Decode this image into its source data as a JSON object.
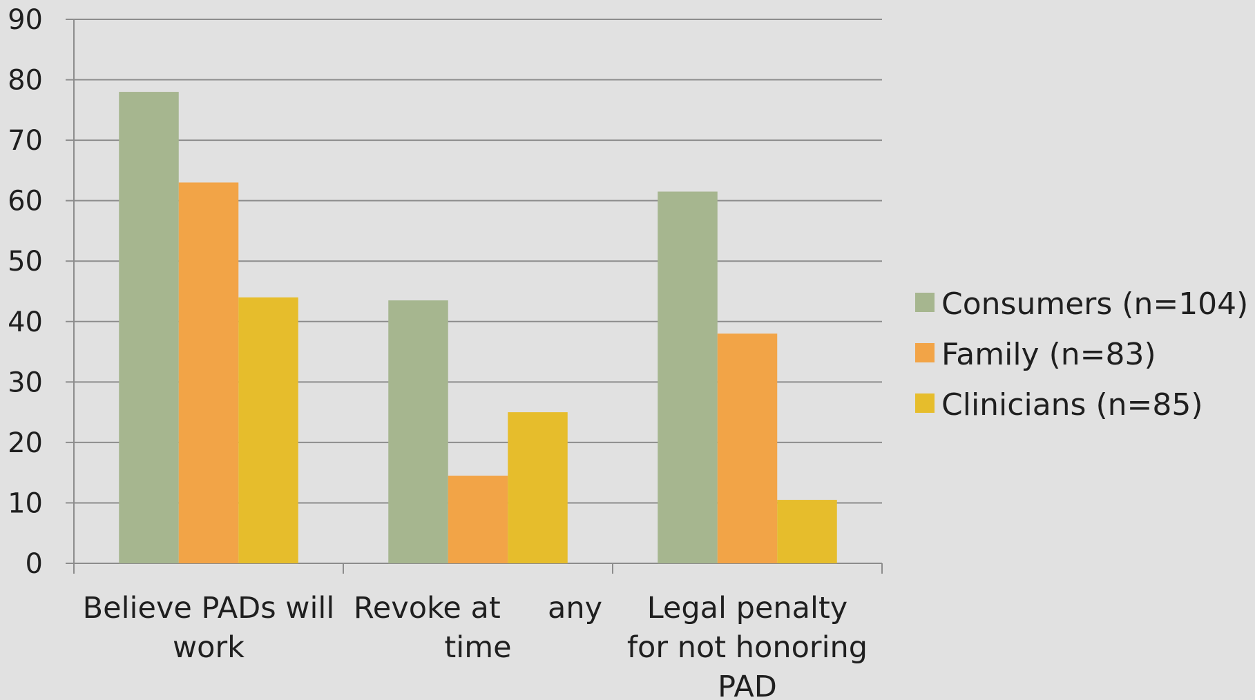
{
  "chart_data": {
    "type": "bar",
    "title": "",
    "xlabel": "",
    "ylabel": "",
    "categories": [
      [
        "Believe PADs will",
        "work"
      ],
      [
        "Revoke at     any",
        "time"
      ],
      [
        "Legal penalty",
        "for not honoring",
        "PAD"
      ]
    ],
    "series": [
      {
        "name": "Consumers (n=104)",
        "color": "#a6b68f",
        "values": [
          78,
          43.5,
          61.5
        ]
      },
      {
        "name": "Family (n=83)",
        "color": "#f2a447",
        "values": [
          63,
          14.5,
          38
        ]
      },
      {
        "name": "Clinicians (n=85)",
        "color": "#e6bd2c",
        "values": [
          44,
          25,
          10.5
        ]
      }
    ],
    "ylim": [
      0,
      90
    ],
    "yticks": [
      0,
      10,
      20,
      30,
      40,
      50,
      60,
      70,
      80,
      90
    ],
    "grid": true,
    "legend_position": "right"
  }
}
